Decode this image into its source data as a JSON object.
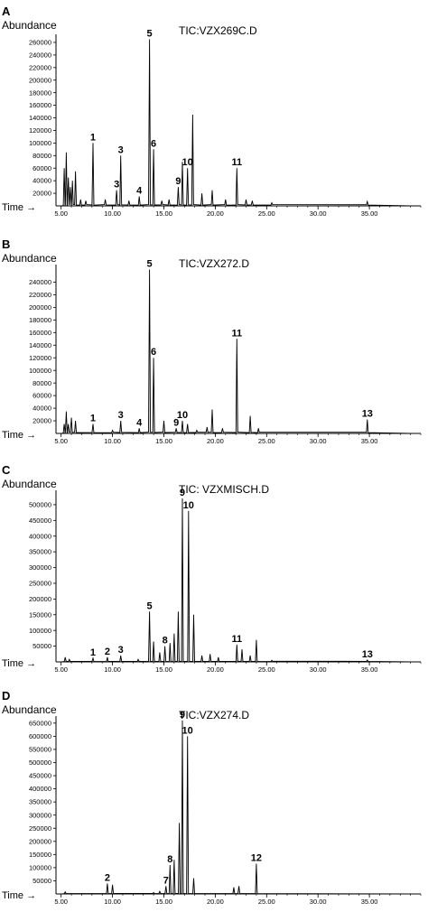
{
  "figure": {
    "time_label": "Time →",
    "ylabel": "Abundance"
  },
  "chart_data": [
    {
      "panel": "A",
      "type": "line",
      "title": "TIC:VZX269C.D",
      "ylabel": "Abundance",
      "xlabel": "Time →",
      "xlim": [
        4.5,
        40
      ],
      "ylim": [
        0,
        270000
      ],
      "x_ticks": [
        5,
        10,
        15,
        20,
        25,
        30,
        35
      ],
      "x_tick_labels": [
        "5.00",
        "10.00",
        "15.00",
        "20.00",
        "25.00",
        "30.00",
        "35.00"
      ],
      "y_ticks": [
        20000,
        40000,
        60000,
        80000,
        100000,
        120000,
        140000,
        160000,
        180000,
        200000,
        220000,
        240000,
        260000
      ],
      "grid": false,
      "peaks": [
        {
          "x": 5.3,
          "y": 60000
        },
        {
          "x": 5.5,
          "y": 85000
        },
        {
          "x": 5.7,
          "y": 45000
        },
        {
          "x": 5.9,
          "y": 30000
        },
        {
          "x": 6.1,
          "y": 40000
        },
        {
          "x": 6.4,
          "y": 55000
        },
        {
          "x": 6.9,
          "y": 10000
        },
        {
          "x": 7.4,
          "y": 8000
        },
        {
          "x": 8.1,
          "y": 100000
        },
        {
          "x": 9.3,
          "y": 10000
        },
        {
          "x": 10.4,
          "y": 25000
        },
        {
          "x": 10.8,
          "y": 80000
        },
        {
          "x": 11.6,
          "y": 8000
        },
        {
          "x": 12.6,
          "y": 15000
        },
        {
          "x": 13.6,
          "y": 265000
        },
        {
          "x": 14.0,
          "y": 90000
        },
        {
          "x": 14.8,
          "y": 8000
        },
        {
          "x": 15.5,
          "y": 10000
        },
        {
          "x": 16.4,
          "y": 30000
        },
        {
          "x": 16.8,
          "y": 70000
        },
        {
          "x": 17.3,
          "y": 60000
        },
        {
          "x": 17.8,
          "y": 145000
        },
        {
          "x": 18.7,
          "y": 20000
        },
        {
          "x": 19.7,
          "y": 25000
        },
        {
          "x": 21.0,
          "y": 10000
        },
        {
          "x": 22.1,
          "y": 60000
        },
        {
          "x": 23.0,
          "y": 10000
        },
        {
          "x": 23.6,
          "y": 8000
        },
        {
          "x": 25.5,
          "y": 5000
        },
        {
          "x": 34.8,
          "y": 7000
        }
      ],
      "labels": [
        {
          "text": "1",
          "x": 8.1,
          "y": 100000
        },
        {
          "text": "3",
          "x": 10.4,
          "y": 25000
        },
        {
          "text": "3",
          "x": 10.8,
          "y": 80000
        },
        {
          "text": "4",
          "x": 12.6,
          "y": 15000
        },
        {
          "text": "5",
          "x": 13.6,
          "y": 265000
        },
        {
          "text": "6",
          "x": 14.0,
          "y": 90000
        },
        {
          "text": "9",
          "x": 16.4,
          "y": 30000
        },
        {
          "text": "10",
          "x": 17.3,
          "y": 60000
        },
        {
          "text": "11",
          "x": 22.1,
          "y": 60000
        }
      ]
    },
    {
      "panel": "B",
      "type": "line",
      "title": "TIC:VZX272.D",
      "ylabel": "Abundance",
      "xlabel": "Time →",
      "xlim": [
        4.5,
        40
      ],
      "ylim": [
        0,
        265000
      ],
      "x_ticks": [
        5,
        10,
        15,
        20,
        25,
        30,
        35
      ],
      "x_tick_labels": [
        "5.00",
        "10.00",
        "15.00",
        "20.00",
        "25.00",
        "30.00",
        "35.00"
      ],
      "y_ticks": [
        20000,
        40000,
        60000,
        80000,
        100000,
        120000,
        140000,
        160000,
        180000,
        200000,
        220000,
        240000
      ],
      "grid": false,
      "peaks": [
        {
          "x": 5.3,
          "y": 15000
        },
        {
          "x": 5.5,
          "y": 35000
        },
        {
          "x": 5.7,
          "y": 15000
        },
        {
          "x": 6.0,
          "y": 25000
        },
        {
          "x": 6.4,
          "y": 20000
        },
        {
          "x": 8.1,
          "y": 15000
        },
        {
          "x": 10.0,
          "y": 5000
        },
        {
          "x": 10.8,
          "y": 20000
        },
        {
          "x": 12.6,
          "y": 8000
        },
        {
          "x": 13.6,
          "y": 260000
        },
        {
          "x": 14.0,
          "y": 120000
        },
        {
          "x": 15.0,
          "y": 20000
        },
        {
          "x": 16.2,
          "y": 8000
        },
        {
          "x": 16.8,
          "y": 20000
        },
        {
          "x": 17.3,
          "y": 15000
        },
        {
          "x": 18.2,
          "y": 5000
        },
        {
          "x": 19.2,
          "y": 10000
        },
        {
          "x": 19.7,
          "y": 38000
        },
        {
          "x": 20.7,
          "y": 8000
        },
        {
          "x": 22.1,
          "y": 150000
        },
        {
          "x": 23.4,
          "y": 28000
        },
        {
          "x": 24.2,
          "y": 8000
        },
        {
          "x": 34.8,
          "y": 22000
        }
      ],
      "labels": [
        {
          "text": "1",
          "x": 8.1,
          "y": 15000
        },
        {
          "text": "3",
          "x": 10.8,
          "y": 20000
        },
        {
          "text": "4",
          "x": 12.6,
          "y": 8000
        },
        {
          "text": "5",
          "x": 13.6,
          "y": 260000
        },
        {
          "text": "6",
          "x": 14.0,
          "y": 120000
        },
        {
          "text": "9",
          "x": 16.2,
          "y": 8000
        },
        {
          "text": "10",
          "x": 16.8,
          "y": 20000
        },
        {
          "text": "11",
          "x": 22.1,
          "y": 150000
        },
        {
          "text": "13",
          "x": 34.8,
          "y": 22000
        }
      ]
    },
    {
      "panel": "C",
      "type": "line",
      "title": "TIC: VZXMISCH.D",
      "ylabel": "Abundance",
      "xlabel": "Time →",
      "xlim": [
        4.5,
        40
      ],
      "ylim": [
        0,
        540000
      ],
      "x_ticks": [
        5,
        10,
        15,
        20,
        25,
        30,
        35
      ],
      "x_tick_labels": [
        "5.00",
        "10.00",
        "15.00",
        "20.00",
        "25.00",
        "30.00",
        "35.00"
      ],
      "y_ticks": [
        50000,
        100000,
        150000,
        200000,
        250000,
        300000,
        350000,
        400000,
        450000,
        500000
      ],
      "grid": false,
      "peaks": [
        {
          "x": 5.4,
          "y": 15000
        },
        {
          "x": 5.8,
          "y": 8000
        },
        {
          "x": 8.1,
          "y": 12000
        },
        {
          "x": 9.5,
          "y": 15000
        },
        {
          "x": 10.8,
          "y": 20000
        },
        {
          "x": 12.5,
          "y": 8000
        },
        {
          "x": 13.6,
          "y": 160000
        },
        {
          "x": 14.0,
          "y": 65000
        },
        {
          "x": 14.6,
          "y": 30000
        },
        {
          "x": 15.1,
          "y": 50000
        },
        {
          "x": 15.6,
          "y": 60000
        },
        {
          "x": 16.0,
          "y": 90000
        },
        {
          "x": 16.4,
          "y": 160000
        },
        {
          "x": 16.8,
          "y": 520000
        },
        {
          "x": 17.4,
          "y": 480000
        },
        {
          "x": 17.9,
          "y": 150000
        },
        {
          "x": 18.7,
          "y": 20000
        },
        {
          "x": 19.5,
          "y": 25000
        },
        {
          "x": 20.3,
          "y": 15000
        },
        {
          "x": 22.1,
          "y": 55000
        },
        {
          "x": 22.6,
          "y": 40000
        },
        {
          "x": 23.4,
          "y": 20000
        },
        {
          "x": 24.0,
          "y": 70000
        },
        {
          "x": 25.5,
          "y": 5000
        },
        {
          "x": 34.8,
          "y": 6000
        }
      ],
      "labels": [
        {
          "text": "1",
          "x": 8.1,
          "y": 12000
        },
        {
          "text": "2",
          "x": 9.5,
          "y": 15000
        },
        {
          "text": "3",
          "x": 10.8,
          "y": 20000
        },
        {
          "text": "5",
          "x": 13.6,
          "y": 160000
        },
        {
          "text": "8",
          "x": 15.1,
          "y": 50000
        },
        {
          "text": "9",
          "x": 16.8,
          "y": 520000
        },
        {
          "text": "10",
          "x": 17.4,
          "y": 480000
        },
        {
          "text": "11",
          "x": 22.1,
          "y": 55000
        },
        {
          "text": "13",
          "x": 34.8,
          "y": 6000
        }
      ]
    },
    {
      "panel": "D",
      "type": "line",
      "title": "TIC:VZX274.D",
      "ylabel": "Abundance",
      "xlabel": "Time →",
      "xlim": [
        4.5,
        40
      ],
      "ylim": [
        0,
        670000
      ],
      "x_ticks": [
        5,
        10,
        15,
        20,
        25,
        30,
        35
      ],
      "x_tick_labels": [
        "5.00",
        "10.00",
        "15.00",
        "20.00",
        "25.00",
        "30.00",
        "35.00"
      ],
      "y_ticks": [
        50000,
        100000,
        150000,
        200000,
        250000,
        300000,
        350000,
        400000,
        450000,
        500000,
        550000,
        600000,
        650000
      ],
      "grid": false,
      "peaks": [
        {
          "x": 5.4,
          "y": 8000
        },
        {
          "x": 9.5,
          "y": 40000
        },
        {
          "x": 10.0,
          "y": 35000
        },
        {
          "x": 14.0,
          "y": 5000
        },
        {
          "x": 14.6,
          "y": 10000
        },
        {
          "x": 15.2,
          "y": 30000
        },
        {
          "x": 15.6,
          "y": 110000
        },
        {
          "x": 16.0,
          "y": 130000
        },
        {
          "x": 16.5,
          "y": 270000
        },
        {
          "x": 16.8,
          "y": 660000
        },
        {
          "x": 17.3,
          "y": 600000
        },
        {
          "x": 17.9,
          "y": 60000
        },
        {
          "x": 21.8,
          "y": 25000
        },
        {
          "x": 22.3,
          "y": 30000
        },
        {
          "x": 24.0,
          "y": 115000
        }
      ],
      "labels": [
        {
          "text": "2",
          "x": 9.5,
          "y": 40000
        },
        {
          "text": "7",
          "x": 15.2,
          "y": 30000
        },
        {
          "text": "8",
          "x": 15.6,
          "y": 110000
        },
        {
          "text": "9",
          "x": 16.8,
          "y": 660000
        },
        {
          "text": "10",
          "x": 17.3,
          "y": 600000
        },
        {
          "text": "12",
          "x": 24.0,
          "y": 115000
        }
      ]
    }
  ]
}
